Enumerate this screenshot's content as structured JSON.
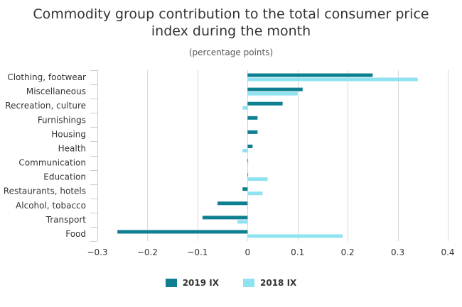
{
  "chart_data": {
    "type": "bar",
    "orientation": "horizontal",
    "title": "Commodity group contribution to the total consumer price\nindex during the month",
    "subtitle": "(percentage points)",
    "categories": [
      "Clothing, footwear",
      "Miscellaneous",
      "Recreation, culture",
      "Furnishings",
      "Housing",
      "Health",
      "Communication",
      "Education",
      "Restaurants, hotels",
      "Alcohol, tobacco",
      "Transport",
      "Food"
    ],
    "series": [
      {
        "name": "2019 IX",
        "color": "#0e7f91",
        "values": [
          0.25,
          0.11,
          0.07,
          0.02,
          0.02,
          0.01,
          0.0,
          0.0,
          -0.01,
          -0.06,
          -0.09,
          -0.26
        ]
      },
      {
        "name": "2018 IX",
        "color": "#8fe3f0",
        "values": [
          0.34,
          0.1,
          -0.01,
          0.0,
          0.0,
          -0.01,
          0.0,
          0.04,
          0.03,
          0.0,
          -0.02,
          0.19
        ]
      }
    ],
    "xlim": [
      -0.3,
      0.4
    ],
    "xticks": [
      -0.3,
      -0.2,
      -0.1,
      0,
      0.1,
      0.2,
      0.3,
      0.4
    ],
    "xtick_labels": [
      "−0.3",
      "−0.2",
      "−0.1",
      "0",
      "0.1",
      "0.2",
      "0.3",
      "0.4"
    ],
    "xlabel": "",
    "ylabel": "",
    "grid": true,
    "legend_position": "bottom"
  }
}
